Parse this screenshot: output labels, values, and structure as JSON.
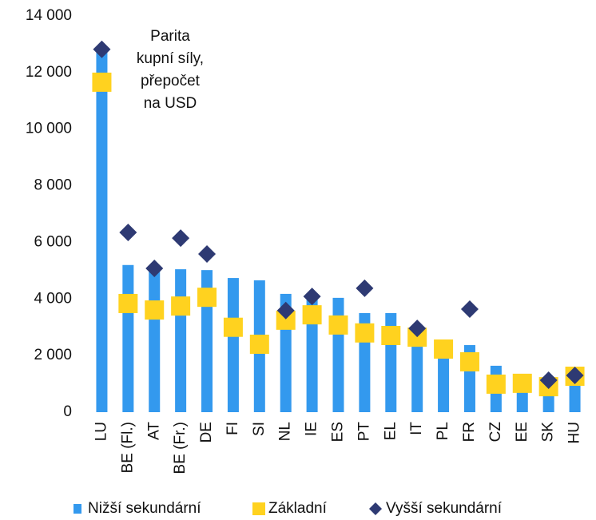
{
  "chart_data": {
    "type": "bar",
    "annotation": [
      "Parita",
      "kupní síly,",
      "přepočet",
      "na USD"
    ],
    "categories": [
      "LU",
      "BE (Fl.)",
      "AT",
      "BE (Fr.)",
      "DE",
      "FI",
      "SI",
      "NL",
      "IE",
      "ES",
      "PT",
      "EL",
      "IT",
      "PL",
      "FR",
      "CZ",
      "EE",
      "SK",
      "HU"
    ],
    "series": [
      {
        "name": "Nižší sekundární",
        "color": "#3399ee",
        "marker": "bar",
        "values": [
          12800,
          5200,
          5000,
          5050,
          5020,
          4740,
          4660,
          4180,
          4150,
          4040,
          3500,
          3500,
          3000,
          2300,
          2370,
          1640,
          1000,
          900,
          1100
        ]
      },
      {
        "name": "Základní",
        "color": "#ffd21f",
        "marker": "square",
        "values": [
          11660,
          3840,
          3610,
          3750,
          4060,
          3000,
          2400,
          3250,
          3440,
          3080,
          2800,
          2710,
          2650,
          2230,
          1780,
          990,
          1020,
          900,
          1270
        ]
      },
      {
        "name": "Vyšší sekundární",
        "color": "#2e3a73",
        "marker": "diamond",
        "values": [
          12820,
          6350,
          5080,
          6150,
          5590,
          null,
          null,
          3590,
          4090,
          null,
          4380,
          null,
          2960,
          null,
          3640,
          null,
          null,
          1130,
          1300
        ]
      }
    ],
    "ylim": [
      0,
      14000
    ],
    "yticks": [
      0,
      {
        "value": 2000,
        "label": "2 000"
      },
      {
        "value": 4000,
        "label": "4 000"
      },
      {
        "value": 6000,
        "label": "6 000"
      },
      {
        "value": 8000,
        "label": "8 000"
      },
      {
        "value": 10000,
        "label": "10 000"
      },
      {
        "value": 12000,
        "label": "12 000"
      },
      {
        "value": 14000,
        "label": "14 000"
      }
    ],
    "grid": false,
    "legend": "bottom"
  }
}
